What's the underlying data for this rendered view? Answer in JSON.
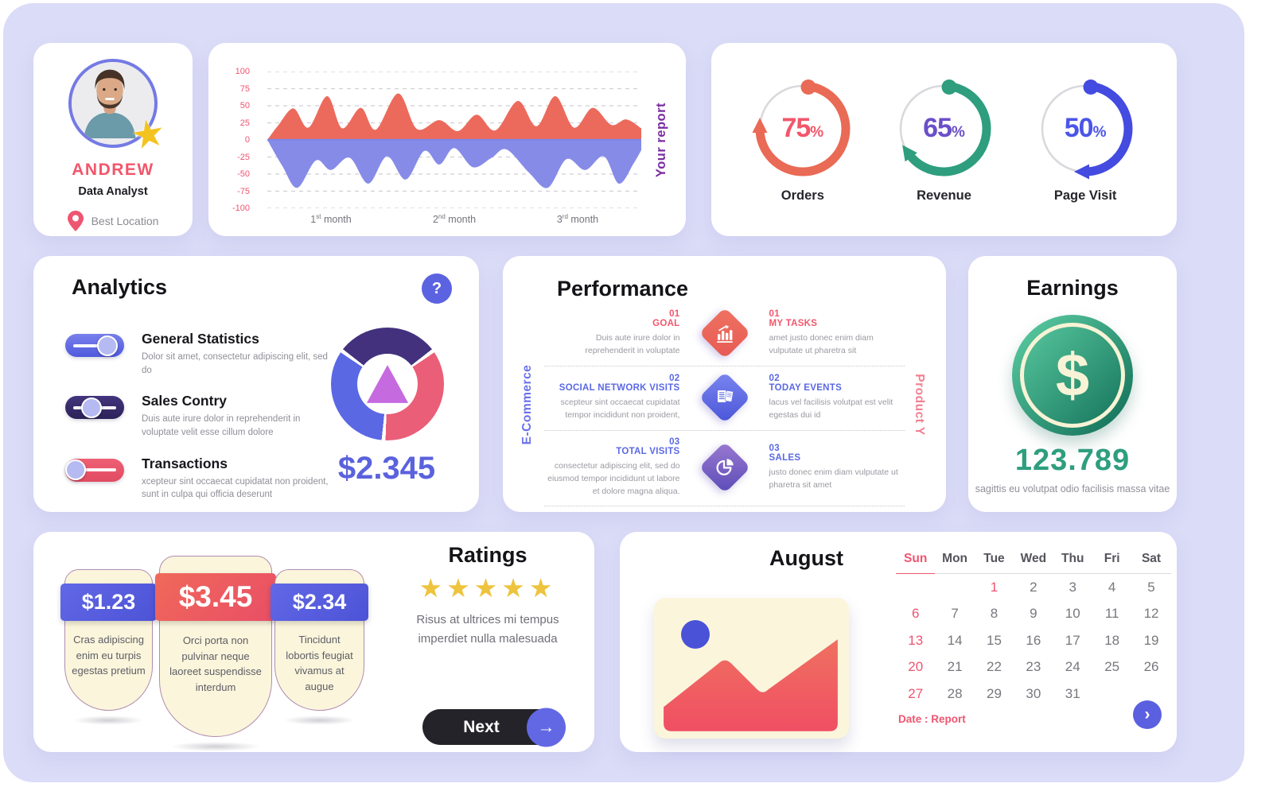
{
  "page_bg": "#dbdcf7",
  "profile": {
    "name": "ANDREW",
    "role": "Data Analyst",
    "location": "Best Location"
  },
  "report_chart": {
    "side_label": "Your report",
    "y_ticks": [
      "100",
      "75",
      "50",
      "25",
      "0",
      "-25",
      "-50",
      "-75",
      "-100"
    ],
    "x_labels": [
      {
        "num": "1",
        "suffix": "st",
        "word": "month"
      },
      {
        "num": "2",
        "suffix": "nd",
        "word": "month"
      },
      {
        "num": "3",
        "suffix": "rd",
        "word": "month"
      }
    ],
    "series": {
      "positive_color": "#ec6a5c",
      "negative_color": "#868be8",
      "positive": [
        [
          0,
          0
        ],
        [
          3,
          22
        ],
        [
          7,
          46
        ],
        [
          11,
          18
        ],
        [
          16,
          64
        ],
        [
          20,
          17
        ],
        [
          25,
          47
        ],
        [
          29,
          15
        ],
        [
          35,
          68
        ],
        [
          40,
          16
        ],
        [
          46,
          29
        ],
        [
          51,
          13
        ],
        [
          56,
          37
        ],
        [
          61,
          14
        ],
        [
          67,
          57
        ],
        [
          72,
          20
        ],
        [
          77,
          64
        ],
        [
          82,
          18
        ],
        [
          87,
          47
        ],
        [
          92,
          22
        ],
        [
          96,
          30
        ],
        [
          100,
          17
        ]
      ],
      "negative": [
        [
          0,
          0
        ],
        [
          4,
          -38
        ],
        [
          8,
          -70
        ],
        [
          13,
          -30
        ],
        [
          17,
          -44
        ],
        [
          22,
          -26
        ],
        [
          27,
          -64
        ],
        [
          32,
          -24
        ],
        [
          37,
          -58
        ],
        [
          42,
          -16
        ],
        [
          46,
          -36
        ],
        [
          50,
          -12
        ],
        [
          55,
          -40
        ],
        [
          60,
          -26
        ],
        [
          64,
          -14
        ],
        [
          70,
          -48
        ],
        [
          75,
          -70
        ],
        [
          80,
          -28
        ],
        [
          85,
          -44
        ],
        [
          90,
          -24
        ],
        [
          94,
          -64
        ],
        [
          98,
          -34
        ],
        [
          100,
          -15
        ]
      ]
    }
  },
  "kpis": {
    "items": [
      {
        "value": 75,
        "suffix": "%",
        "label": "Orders",
        "arc_color": "#e96a55",
        "text_color": "#f2566b"
      },
      {
        "value": 65,
        "suffix": "%",
        "label": "Revenue",
        "arc_color": "#2e9e7e",
        "text_color": "#6a4fc8"
      },
      {
        "value": 50,
        "suffix": "%",
        "label": "Page Visit",
        "arc_color": "#444be0",
        "text_color": "#4b55e8"
      }
    ]
  },
  "analytics": {
    "title": "Analytics",
    "help_icon": "?",
    "toggles": [
      {
        "label": "General Statistics",
        "desc": "Dolor sit amet, consectetur adipiscing elit, sed do",
        "color_start": "#7880ec",
        "color_end": "#5059dc",
        "thumb_pct": 72
      },
      {
        "label": "Sales Contry",
        "desc": "Duis aute irure dolor in reprehenderit in voluptate velit esse cillum dolore",
        "color_start": "#43357e",
        "color_end": "#2c2258",
        "thumb_pct": 45
      },
      {
        "label": "Transactions",
        "desc": "xcepteur sint occaecat cupidatat non proident, sunt in culpa qui officia deserunt",
        "color_start": "#ef6075",
        "color_end": "#e04b60",
        "thumb_pct": 18
      }
    ],
    "donut": {
      "amount": "$2.345",
      "segments": [
        {
          "name": "purple",
          "color": "#43317e",
          "from": -52,
          "to": 52
        },
        {
          "name": "pink",
          "color": "#ea5e78",
          "from": 56,
          "to": 182
        },
        {
          "name": "blue",
          "color": "#5a68e4",
          "from": 186,
          "to": 304
        }
      ],
      "triangle_color": "#c66ae0"
    }
  },
  "performance": {
    "title": "Performance",
    "left_axis": "E-Commerce",
    "right_axis": "Product Y",
    "rows": [
      {
        "left": {
          "num": "01",
          "title": "GOAL",
          "desc": "Duis aute irure dolor in reprehenderit in voluptate",
          "color": "#f2566b"
        },
        "icon": "bar-chart",
        "diamond_from": "#ef7261",
        "diamond_to": "#e65a54",
        "right": {
          "num": "01",
          "title": "MY TASKS",
          "desc": "amet justo donec enim diam vulputate ut pharetra sit",
          "color": "#f2566b"
        }
      },
      {
        "left": {
          "num": "02",
          "title": "SOCIAL NETWORK VISITS",
          "desc": "scepteur sint occaecat cupidatat tempor incididunt non proident,",
          "color": "#5a68e4"
        },
        "icon": "documents",
        "diamond_from": "#7b86f0",
        "diamond_to": "#4a55d8",
        "right": {
          "num": "02",
          "title": "TODAY EVENTS",
          "desc": "lacus vel facilisis volutpat est velit egestas dui id",
          "color": "#5a68e4"
        }
      },
      {
        "left": {
          "num": "03",
          "title": "TOTAL VISITS",
          "desc": "consectetur adipiscing elit, sed do eiusmod tempor incididunt ut labore et dolore magna aliqua.",
          "color": "#5a68e4"
        },
        "icon": "pie-chart",
        "diamond_from": "#9a7ad0",
        "diamond_to": "#5b4bb8",
        "right": {
          "num": "03",
          "title": "SALES",
          "desc": "justo donec enim diam vulputate ut pharetra sit amet",
          "color": "#5a68e4"
        }
      }
    ]
  },
  "earnings": {
    "title": "Earnings",
    "currency_icon": "$",
    "value": "123.789",
    "caption": "sagittis eu volutpat odio facilisis massa vitae"
  },
  "pricing": {
    "tags": [
      {
        "price": "$1.23",
        "desc": "Cras adipiscing enim eu turpis egestas pretium",
        "ribbon_from": "#6168e6",
        "ribbon_to": "#4d53d6",
        "size": "small"
      },
      {
        "price": "$3.45",
        "desc": "Orci porta non pulvinar neque laoreet suspendisse interdum",
        "ribbon_from": "#f0695a",
        "ribbon_to": "#e94e66",
        "size": "large"
      },
      {
        "price": "$2.34",
        "desc": "Tincidunt lobortis feugiat vivamus at augue",
        "ribbon_from": "#6168e6",
        "ribbon_to": "#4d53d6",
        "size": "small"
      }
    ]
  },
  "ratings": {
    "title": "Ratings",
    "stars": 5,
    "star_icon": "★",
    "text": "Risus at ultrices mi tempus imperdiet nulla malesuada",
    "next_label": "Next",
    "next_arrow": "→"
  },
  "calendar": {
    "month": "August",
    "day_headers": [
      "Sun",
      "Mon",
      "Tue",
      "Wed",
      "Thu",
      "Fri",
      "Sat"
    ],
    "weeks": [
      [
        "",
        "",
        "1",
        "2",
        "3",
        "4",
        "5"
      ],
      [
        "6",
        "7",
        "8",
        "9",
        "10",
        "11",
        "12"
      ],
      [
        "13",
        "14",
        "15",
        "16",
        "17",
        "18",
        "19"
      ],
      [
        "20",
        "21",
        "22",
        "23",
        "24",
        "25",
        "26"
      ],
      [
        "27",
        "28",
        "29",
        "30",
        "31",
        "",
        ""
      ]
    ],
    "red_dates": [
      1,
      6,
      13,
      20,
      27
    ],
    "footer": "Date : Report",
    "next_arrow": "›"
  }
}
